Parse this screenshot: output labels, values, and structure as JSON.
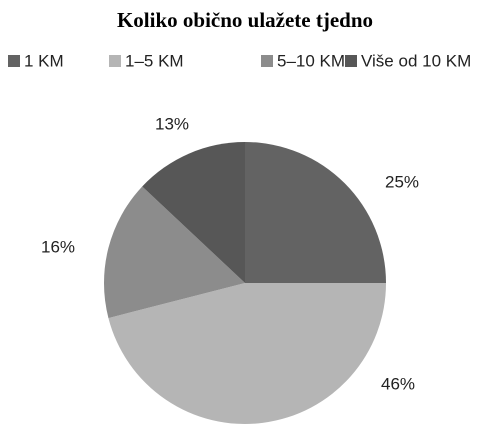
{
  "chart_data": {
    "type": "pie",
    "title": "Koliko obično ulažete tjedno",
    "categories": [
      "1 KM",
      "1–5 KM",
      "5–10 KM",
      "Više od 10 KM"
    ],
    "values": [
      25,
      46,
      16,
      13
    ],
    "value_labels": [
      "25%",
      "46%",
      "16%",
      "13%"
    ],
    "colors": [
      "#636363",
      "#b5b5b5",
      "#8c8c8c",
      "#575757"
    ],
    "legend": "top"
  }
}
